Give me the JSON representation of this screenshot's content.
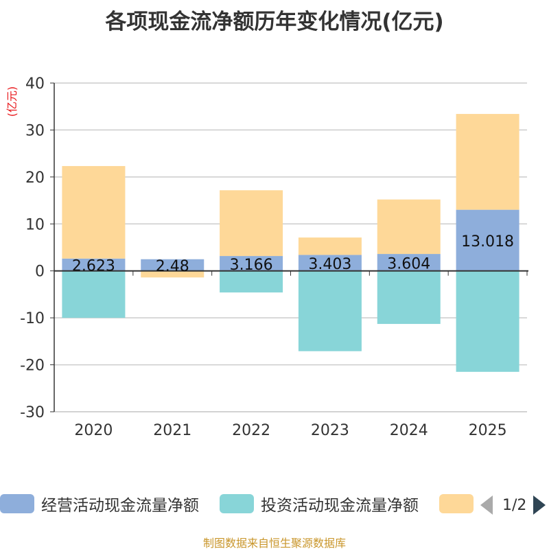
{
  "title": "各项现金流净额历年变化情况(亿元)",
  "unit_label": "(亿元)",
  "source": "制图数据来自恒生聚源数据库",
  "legend": {
    "items": [
      {
        "name": "经营活动现金流量净额",
        "color": "#8eaedb"
      },
      {
        "name": "投资活动现金流量净额",
        "color": "#88d5d8"
      },
      {
        "name": "",
        "color": "#fed898"
      }
    ],
    "page": "1/2"
  },
  "chart_data": {
    "type": "bar",
    "stacked": true,
    "title": "各项现金流净额历年变化情况(亿元)",
    "ylabel": "(亿元)",
    "xlabel": "",
    "categories": [
      "2020",
      "2021",
      "2022",
      "2023",
      "2024",
      "2025"
    ],
    "ylim": [
      -30,
      40
    ],
    "yticks": [
      -30,
      -20,
      -10,
      0,
      10,
      20,
      30,
      40
    ],
    "series": [
      {
        "name": "经营活动现金流量净额",
        "color": "#8eaedb",
        "values": [
          2.623,
          2.48,
          3.166,
          3.403,
          3.604,
          13.018
        ],
        "labels": [
          "2.623",
          "2.48",
          "3.166",
          "3.403",
          "3.604",
          "13.018"
        ]
      },
      {
        "name": "投资活动现金流量净额",
        "color": "#88d5d8",
        "values": [
          -10.0,
          0,
          -4.6,
          -17.1,
          -11.3,
          -21.5
        ]
      },
      {
        "name": "",
        "color": "#fed898",
        "values": [
          19.7,
          -1.4,
          14.0,
          3.7,
          11.6,
          20.4
        ]
      }
    ]
  }
}
